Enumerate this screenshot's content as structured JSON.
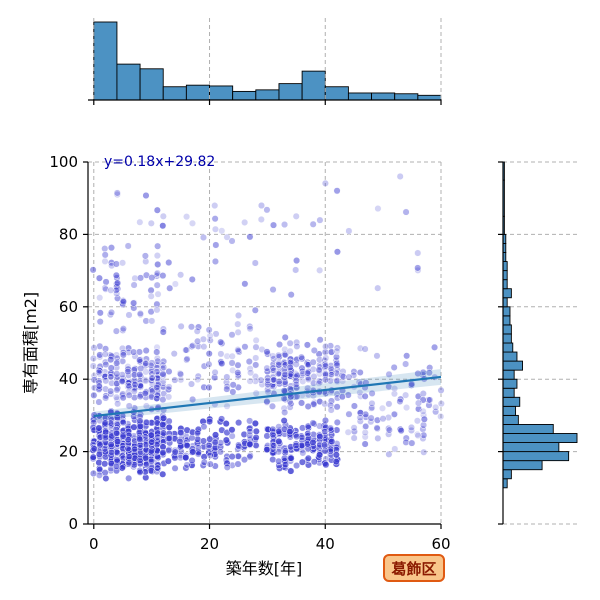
{
  "chart_data": {
    "type": "scatter",
    "title": "",
    "xlabel": "築年数[年]",
    "ylabel": "専有面積[m2]",
    "xlim": [
      -1,
      60
    ],
    "ylim": [
      0,
      100
    ],
    "xticks": [
      "0",
      "20",
      "40",
      "60"
    ],
    "yticks": [
      "0",
      "20",
      "40",
      "60",
      "80",
      "100"
    ],
    "grid": true,
    "annotation": "y=0.18x+29.82",
    "badge": "葛飾区",
    "colors": {
      "points": "#3a3ad0",
      "regression": "#1f77b4",
      "histogram": "#4c92c3",
      "badge_fill": "#f9c58a",
      "badge_border": "#e05a12"
    },
    "regression": {
      "slope": 0.18,
      "intercept": 29.82
    },
    "point_clusters": [
      {
        "x": [
          0,
          12
        ],
        "y": [
          12,
          32
        ],
        "n": 420,
        "tag": "dense"
      },
      {
        "x": [
          0,
          12
        ],
        "y": [
          30,
          50
        ],
        "n": 200,
        "tag": "mid"
      },
      {
        "x": [
          0,
          12
        ],
        "y": [
          50,
          80
        ],
        "n": 60,
        "tag": "high"
      },
      {
        "x": [
          12,
          28
        ],
        "y": [
          14,
          30
        ],
        "n": 140,
        "tag": "dense"
      },
      {
        "x": [
          12,
          30
        ],
        "y": [
          30,
          60
        ],
        "n": 90,
        "tag": "mid"
      },
      {
        "x": [
          30,
          42
        ],
        "y": [
          14,
          30
        ],
        "n": 180,
        "tag": "dense"
      },
      {
        "x": [
          30,
          42
        ],
        "y": [
          30,
          52
        ],
        "n": 210,
        "tag": "mid"
      },
      {
        "x": [
          42,
          60
        ],
        "y": [
          18,
          50
        ],
        "n": 120,
        "tag": "mid"
      },
      {
        "x": [
          0,
          60
        ],
        "y": [
          55,
          100
        ],
        "n": 60,
        "tag": "high"
      }
    ],
    "top_histogram": {
      "bin_edges": [
        0,
        4,
        8,
        12,
        16,
        20,
        24,
        28,
        32,
        36,
        40,
        44,
        48,
        52,
        56,
        60
      ],
      "counts": [
        100,
        46,
        40,
        17,
        19,
        18,
        11,
        13,
        21,
        37,
        17,
        9,
        9,
        8,
        6
      ]
    },
    "right_histogram": {
      "bin_edges": [
        10,
        12.5,
        15,
        17.5,
        20,
        22.5,
        25,
        27.5,
        30,
        32.5,
        35,
        37.5,
        40,
        42.5,
        45,
        47.5,
        50,
        52.5,
        55,
        57.5,
        60,
        62.5,
        65,
        67.5,
        70,
        72.5,
        75,
        77.5,
        80,
        85,
        95,
        100
      ],
      "counts": [
        3,
        6,
        28,
        47,
        40,
        53,
        36,
        11,
        9,
        12,
        8,
        10,
        8,
        14,
        10,
        7,
        6,
        6,
        5,
        5,
        3,
        6,
        3,
        3,
        3,
        2,
        2,
        2,
        1,
        1,
        1
      ]
    }
  }
}
